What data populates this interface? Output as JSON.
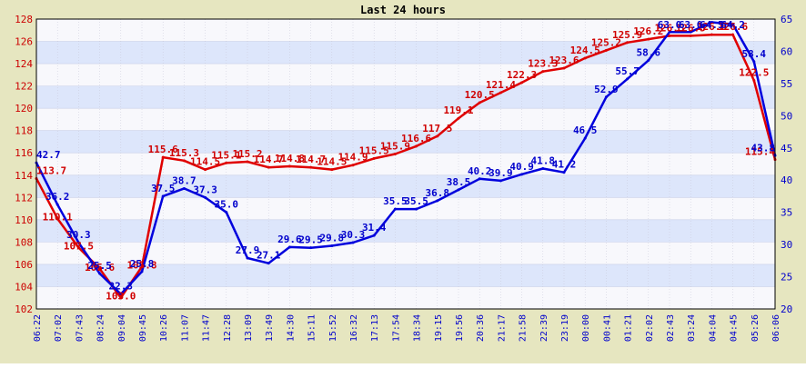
{
  "title": "Last 24 hours",
  "chart_data": {
    "type": "line",
    "title": "Last 24 hours",
    "xlabel": "",
    "ylabel": "",
    "x": [
      "06:22",
      "07:02",
      "07:43",
      "08:24",
      "09:04",
      "09:45",
      "10:26",
      "11:07",
      "11:47",
      "12:28",
      "13:09",
      "13:49",
      "14:30",
      "15:11",
      "15:52",
      "16:32",
      "17:13",
      "17:54",
      "18:34",
      "19:15",
      "19:56",
      "20:36",
      "21:17",
      "21:58",
      "22:39",
      "23:19",
      "00:00",
      "00:41",
      "01:21",
      "02:02",
      "02:43",
      "03:24",
      "04:04",
      "04:45",
      "05:26",
      "06:06"
    ],
    "y_left_range": [
      102,
      128
    ],
    "y_left_ticks": [
      102,
      104,
      106,
      108,
      110,
      112,
      114,
      116,
      118,
      120,
      122,
      124,
      126,
      128
    ],
    "y_right_range": [
      20,
      65
    ],
    "y_right_ticks": [
      20,
      25,
      30,
      35,
      40,
      45,
      50,
      55,
      60,
      65
    ],
    "grid": true,
    "colors": {
      "red_series": "#e00000",
      "blue_series": "#0000dd",
      "red_label": "#d00000",
      "blue_label": "#0000cc",
      "band": "#dde6fb",
      "plot_bg": "#f8f8fc",
      "frame": "#e6e6c0"
    },
    "series": [
      {
        "axis": "left",
        "color": "#e00000",
        "values": [
          113.7,
          110.1,
          107.5,
          105.6,
          103.0,
          105.8,
          115.6,
          115.3,
          114.5,
          115.1,
          115.2,
          114.7,
          114.8,
          114.7,
          114.5,
          114.9,
          115.5,
          115.9,
          116.6,
          117.5,
          119.1,
          120.5,
          121.4,
          122.3,
          123.3,
          123.6,
          124.5,
          125.2,
          125.9,
          126.2,
          126.5,
          126.5,
          126.6,
          126.6,
          122.5,
          115.4
        ],
        "labels": [
          "113.7",
          "110.1",
          "107.5",
          "105.6",
          "103.0",
          "105.8",
          "115.6",
          "115.3",
          "114.5",
          "115.1",
          "115.2",
          "114.7",
          "114.8",
          "114.7",
          "114.5",
          "114.9",
          "115.5",
          "115.9",
          "116.6",
          "117.5",
          "119.1",
          "120.5",
          "121.4",
          "122.3",
          "123.3",
          "123.6",
          "124.5",
          "125.2",
          "125.9",
          "126.2",
          "126.5",
          "126.5",
          "126.6",
          "126.6",
          "122.5",
          "115.4"
        ]
      },
      {
        "axis": "right",
        "color": "#0000dd",
        "values": [
          42.7,
          36.2,
          30.3,
          25.5,
          22.3,
          25.8,
          37.5,
          38.7,
          37.3,
          35.0,
          27.9,
          27.1,
          29.6,
          29.5,
          29.8,
          30.3,
          31.4,
          35.5,
          35.5,
          36.8,
          38.5,
          40.2,
          39.9,
          40.9,
          41.8,
          41.2,
          46.5,
          52.9,
          55.7,
          58.6,
          63.0,
          63.0,
          64.5,
          64.2,
          58.4,
          43.8
        ],
        "labels": [
          "42.7",
          "36.2",
          "30.3",
          "25.5",
          "22.3",
          "25.8",
          "37.5",
          "38.7",
          "37.3",
          "35.0",
          "27.9",
          "27.1",
          "29.6",
          "29.5",
          "29.8",
          "30.3",
          "31.4",
          "35.5",
          "35.5",
          "36.8",
          "38.5",
          "40.2",
          "39.9",
          "40.9",
          "41.8",
          "41.2",
          "46.5",
          "52.9",
          "55.7",
          "58.6",
          "63.0",
          "63.0",
          "64.5",
          "64.2",
          "58.4",
          "43.8"
        ]
      }
    ]
  }
}
